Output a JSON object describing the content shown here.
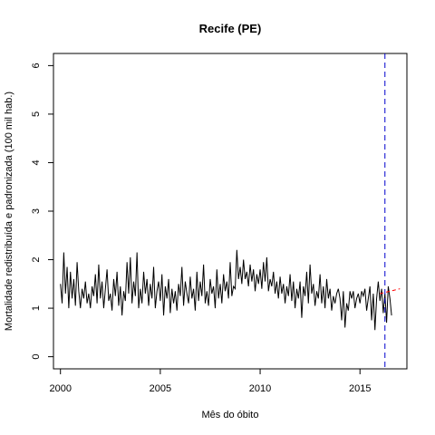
{
  "chart_data": {
    "type": "line",
    "title": "Recife (PE)",
    "xlabel": "Mês do óbito",
    "ylabel": "Mortalidade redistribuída e padronizada (100 mil hab.)",
    "xlim": [
      1999.65,
      2017.35
    ],
    "ylim": [
      -0.25,
      6.25
    ],
    "x_ticks": [
      2000,
      2005,
      2010,
      2015
    ],
    "x_tick_labels": [
      "2000",
      "2005",
      "2010",
      "2015"
    ],
    "y_ticks": [
      0,
      1,
      2,
      3,
      4,
      5,
      6
    ],
    "y_tick_labels": [
      "0",
      "1",
      "2",
      "3",
      "4",
      "5",
      "6"
    ],
    "grid": false,
    "series": [
      {
        "color": "#000000",
        "x_start": 2000.0,
        "x_step": 0.08333,
        "values": [
          1.5,
          1.1,
          2.15,
          1.3,
          1.85,
          1.0,
          1.75,
          1.2,
          1.6,
          1.05,
          1.95,
          1.35,
          1.0,
          1.4,
          1.2,
          1.55,
          1.1,
          1.3,
          1.0,
          1.45,
          1.25,
          1.7,
          1.1,
          1.9,
          1.2,
          1.55,
          1.0,
          1.4,
          1.8,
          1.15,
          1.3,
          0.95,
          1.6,
          1.25,
          1.75,
          1.05,
          1.45,
          0.85,
          1.35,
          1.15,
          1.95,
          1.3,
          2.05,
          1.1,
          1.55,
          1.25,
          2.15,
          1.0,
          1.4,
          1.1,
          1.75,
          1.3,
          1.6,
          1.05,
          1.5,
          1.2,
          1.85,
          1.0,
          1.35,
          1.55,
          1.15,
          1.7,
          0.85,
          1.45,
          1.2,
          1.6,
          0.9,
          1.4,
          1.1,
          1.35,
          0.95,
          1.5,
          1.25,
          1.85,
          1.05,
          1.55,
          1.3,
          1.1,
          1.65,
          1.2,
          1.4,
          0.95,
          1.75,
          1.15,
          1.55,
          1.25,
          1.9,
          1.1,
          1.35,
          1.05,
          1.6,
          1.3,
          1.45,
          1.0,
          1.8,
          1.2,
          1.5,
          1.1,
          1.7,
          1.35,
          1.55,
          1.2,
          1.95,
          1.25,
          1.45,
          1.4,
          2.2,
          1.6,
          1.85,
          1.5,
          2.0,
          1.6,
          1.75,
          1.45,
          1.9,
          1.55,
          1.8,
          1.35,
          1.7,
          1.5,
          1.8,
          1.4,
          1.95,
          1.55,
          2.05,
          1.35,
          1.6,
          1.45,
          1.75,
          1.3,
          1.55,
          1.2,
          1.65,
          1.3,
          1.5,
          1.1,
          1.45,
          1.25,
          1.7,
          1.15,
          1.55,
          1.0,
          1.4,
          1.2,
          1.55,
          0.8,
          1.45,
          1.25,
          1.75,
          1.1,
          1.9,
          1.3,
          1.5,
          1.05,
          1.35,
          1.2,
          1.7,
          1.1,
          1.45,
          1.0,
          1.6,
          1.2,
          1.4,
          0.95,
          1.25,
          1.1,
          1.3,
          1.4,
          1.2,
          0.75,
          1.35,
          0.6,
          1.1,
          0.95,
          1.35,
          1.2,
          1.35,
          1.0,
          1.2,
          1.3,
          1.1,
          1.35,
          1.25,
          1.4,
          0.95,
          1.2,
          1.45,
          0.75,
          1.3,
          0.55,
          1.2,
          1.55,
          1.15,
          1.4,
          0.9,
          1.3,
          0.7,
          1.45,
          1.2,
          0.85
        ]
      },
      {
        "color": "#ff0000",
        "dashed": true,
        "x": [
          2016.0,
          2016.5,
          2017.0
        ],
        "values": [
          1.3,
          1.35,
          1.4
        ]
      }
    ],
    "vline": {
      "x": 2016.25,
      "color": "#0000cc",
      "dashed": true
    }
  }
}
